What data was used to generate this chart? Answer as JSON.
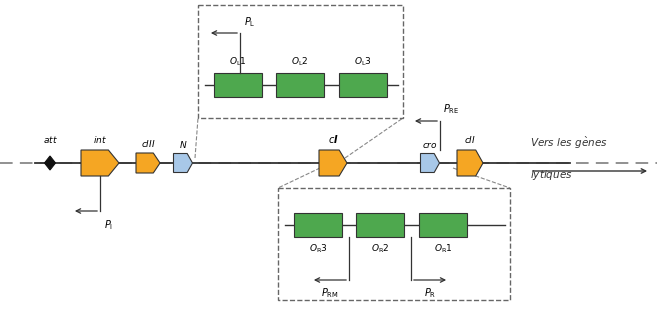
{
  "fig_width": 6.57,
  "fig_height": 3.09,
  "dpi": 100,
  "background": "#ffffff",
  "gene_colors": {
    "orange": "#F5A623",
    "blue": "#A8C8E8",
    "green": "#4EA84E",
    "black": "#111111"
  }
}
